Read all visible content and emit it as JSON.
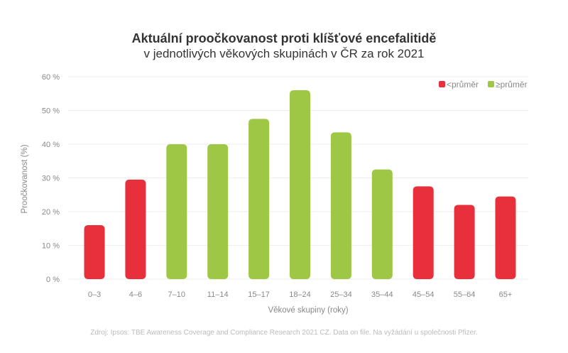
{
  "chart_data": {
    "type": "bar",
    "title": "Aktuální proočkovanost proti klíšťové encefalitidě",
    "subtitle": "v jednotlivých věkových skupinách v ČR za rok 2021",
    "xlabel": "Věkové skupiny (roky)",
    "ylabel": "Proočkovanost (%)",
    "ylim": [
      0,
      60
    ],
    "yticks": [
      "0 %",
      "10 %",
      "20 %",
      "30 %",
      "40 %",
      "50 %",
      "60 %"
    ],
    "categories": [
      "0–3",
      "4–6",
      "7–10",
      "11–14",
      "15–17",
      "18–24",
      "25–34",
      "35–44",
      "45–54",
      "55–64",
      "65+"
    ],
    "values": [
      16,
      29.5,
      40,
      40,
      47.5,
      56,
      43.5,
      32.5,
      27.5,
      22,
      24.5
    ],
    "groups": [
      "below",
      "below",
      "above",
      "above",
      "above",
      "above",
      "above",
      "above",
      "below",
      "below",
      "below"
    ],
    "legend": [
      {
        "key": "below",
        "label": "<průměr",
        "color": "#e8303c"
      },
      {
        "key": "above",
        "label": "≥průměr",
        "color": "#9dc744"
      }
    ],
    "legend_position": "top-right",
    "grid": true
  },
  "source_text": "Zdroj: Ipsos: TBE Awareness Coverage and Compliance Research 2021 CZ. Data on file. Na vyžádání u společnosti Pfizer."
}
